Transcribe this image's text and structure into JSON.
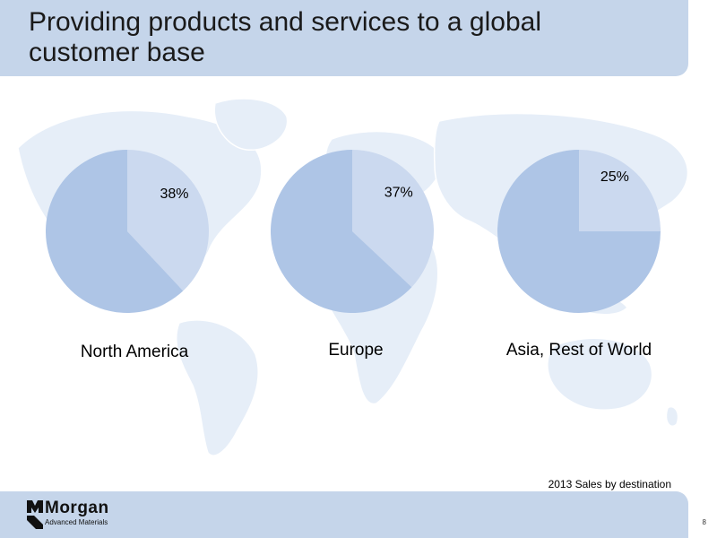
{
  "slide": {
    "title": "Providing products and services to a global customer base",
    "caption": "2013 Sales by destination",
    "page_number": "8"
  },
  "logo": {
    "name": "Morgan",
    "subtitle": "Advanced Materials"
  },
  "colors": {
    "header": "#c5d5ea",
    "pie_main": "#aec5e6",
    "pie_slice": "#cbd9ef",
    "map": "#e6eef8"
  },
  "chart_data": [
    {
      "type": "pie",
      "title": "North America",
      "slices": [
        {
          "label": "38%",
          "value": 38
        },
        {
          "label": "",
          "value": 62
        }
      ]
    },
    {
      "type": "pie",
      "title": "Europe",
      "slices": [
        {
          "label": "37%",
          "value": 37
        },
        {
          "label": "",
          "value": 63
        }
      ]
    },
    {
      "type": "pie",
      "title": "Asia, Rest of World",
      "slices": [
        {
          "label": "25%",
          "value": 25
        },
        {
          "label": "",
          "value": 75
        }
      ]
    }
  ]
}
